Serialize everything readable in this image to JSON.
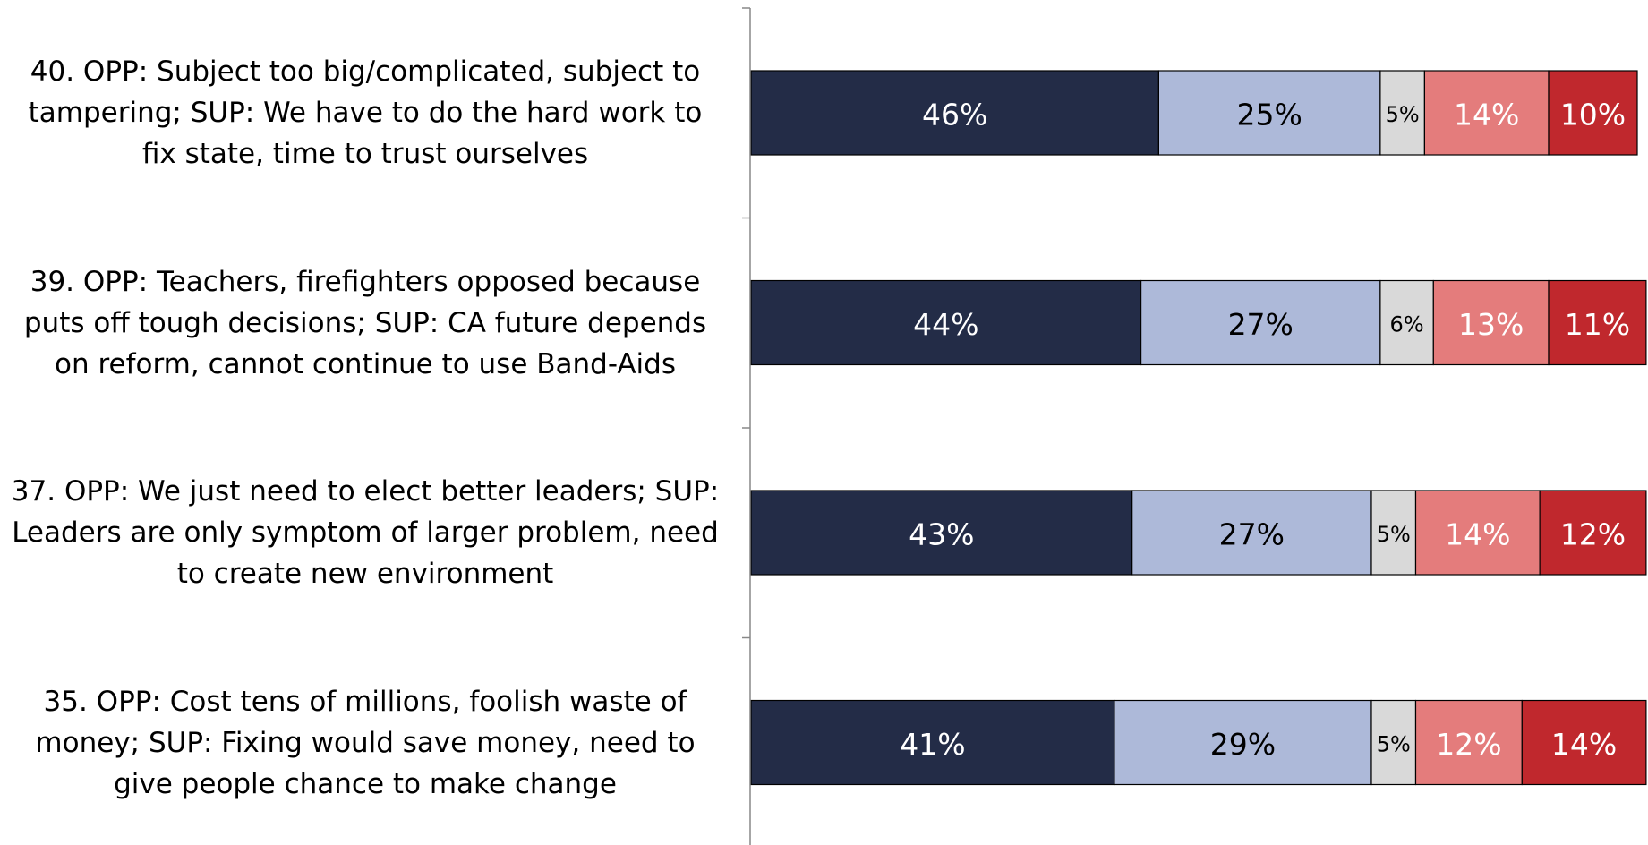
{
  "chart_data": {
    "type": "stacked-bar",
    "orientation": "horizontal",
    "categories": [
      "40. OPP: Subject too big/complicated, subject to tampering; SUP: We have to do the hard work to fix state, time to trust ourselves",
      "39. OPP: Teachers, firefighters opposed because puts off tough decisions; SUP: CA future depends on reform, cannot continue to use Band-Aids",
      "37. OPP: We just need to elect better leaders; SUP: Leaders are only symptom of larger problem, need to create new environment",
      "35. OPP: Cost tens of millions, foolish waste of money; SUP: Fixing would save money, need to give people chance to make change"
    ],
    "xlim": [
      0,
      100
    ],
    "series": [
      {
        "color": "#232c47",
        "label_color": "#ffffff",
        "values": [
          46,
          44,
          43,
          41
        ],
        "value_labels": [
          "46%",
          "44%",
          "43%",
          "41%"
        ]
      },
      {
        "color": "#adb9d9",
        "label_color": "#000000",
        "values": [
          25,
          27,
          27,
          29
        ],
        "value_labels": [
          "25%",
          "27%",
          "27%",
          "29%"
        ]
      },
      {
        "color": "#d9d9d9",
        "label_color": "#000000",
        "values": [
          5,
          6,
          5,
          5
        ],
        "value_labels": [
          "5%",
          "6%",
          "5%",
          "5%"
        ]
      },
      {
        "color": "#e47c7c",
        "label_color": "#ffffff",
        "values": [
          14,
          13,
          14,
          12
        ],
        "value_labels": [
          "14%",
          "13%",
          "14%",
          "12%"
        ]
      },
      {
        "color": "#c0282d",
        "label_color": "#ffffff",
        "values": [
          10,
          11,
          12,
          14
        ],
        "value_labels": [
          "10%",
          "11%",
          "12%",
          "14%"
        ]
      }
    ]
  }
}
